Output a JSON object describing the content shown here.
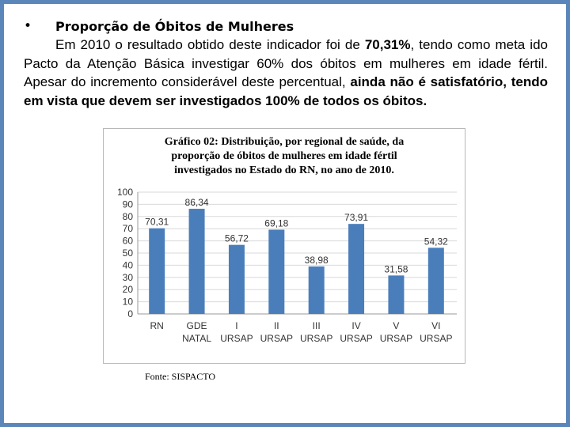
{
  "slide": {
    "bullet": "•",
    "heading": "Proporção de Óbitos de Mulheres",
    "para_1": "Em 2010 o resultado obtido deste indicador foi de ",
    "para_value": "70,31%",
    "para_2": ", tendo como meta ido Pacto da Atenção Básica investigar 60% dos óbitos em mulheres em idade fértil. Apesar do incremento considerável deste percentual, ",
    "para_bold": "ainda não é satisfatório, tendo em vista que devem ser investigados 100% de todos os óbitos.",
    "source": "Fonte: SISPACTO"
  },
  "colors": {
    "frame": "#5b86b9",
    "bar": "#4a7ebb",
    "grid": "#d9d9d9"
  },
  "chart_data": {
    "type": "bar",
    "title": "Gráfico 02: Distribuição, por regional de saúde, da\nproporção de óbitos de mulheres em idade fértil\ninvestigados no Estado do RN, no ano de 2010.",
    "categories": [
      "RN",
      "GDE NATAL",
      "I URSAP",
      "II URSAP",
      "III URSAP",
      "IV URSAP",
      "V URSAP",
      "VI URSAP"
    ],
    "values": [
      70.31,
      86.34,
      56.72,
      69.18,
      38.98,
      73.91,
      31.58,
      54.32
    ],
    "value_labels": [
      "70,31",
      "86,34",
      "56,72",
      "69,18",
      "38,98",
      "73,91",
      "31,58",
      "54,32"
    ],
    "yticks": [
      0,
      10,
      20,
      30,
      40,
      50,
      60,
      70,
      80,
      90,
      100
    ],
    "ylim": [
      0,
      100
    ],
    "grid": true,
    "legend": "none"
  }
}
